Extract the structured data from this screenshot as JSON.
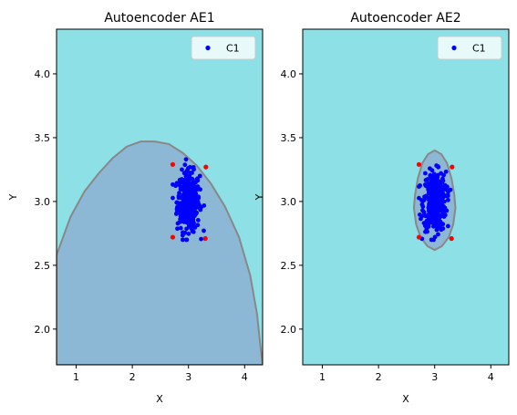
{
  "colors": {
    "background_region": "#8ce0e6",
    "boundary_region": "#8cb8d6",
    "boundary_line": "#888888",
    "inlier_points": "#0000ff",
    "outlier_points": "#ff0000"
  },
  "chart_data": [
    {
      "type": "scatter",
      "title": "Autoencoder AE1",
      "xlabel": "X",
      "ylabel": "Y",
      "xlim": [
        0.65,
        4.32
      ],
      "ylim": [
        1.72,
        4.35
      ],
      "xticks": [
        "1",
        "2",
        "3",
        "4"
      ],
      "yticks": [
        "2.0",
        "2.5",
        "3.0",
        "3.5",
        "4.0"
      ],
      "grid": false,
      "legend": {
        "position": "top-right",
        "entries": [
          {
            "label": "C1",
            "color": "#0000ff"
          }
        ]
      },
      "series": [
        {
          "name": "C1",
          "cluster_center": [
            3.0,
            3.0
          ],
          "cluster_std": [
            0.1,
            0.1
          ],
          "count": 400
        }
      ],
      "outliers": [
        [
          2.72,
          3.29
        ],
        [
          3.31,
          3.27
        ],
        [
          2.72,
          2.72
        ],
        [
          3.3,
          2.71
        ]
      ],
      "decision_boundary": [
        [
          0.65,
          2.58
        ],
        [
          0.9,
          2.88
        ],
        [
          1.15,
          3.08
        ],
        [
          1.4,
          3.22
        ],
        [
          1.65,
          3.34
        ],
        [
          1.9,
          3.43
        ],
        [
          2.15,
          3.47
        ],
        [
          2.4,
          3.47
        ],
        [
          2.65,
          3.45
        ],
        [
          2.9,
          3.38
        ],
        [
          3.15,
          3.28
        ],
        [
          3.4,
          3.14
        ],
        [
          3.65,
          2.96
        ],
        [
          3.9,
          2.72
        ],
        [
          4.1,
          2.42
        ],
        [
          4.22,
          2.12
        ],
        [
          4.28,
          1.87
        ],
        [
          4.32,
          1.72
        ]
      ]
    },
    {
      "type": "scatter",
      "title": "Autoencoder AE2",
      "xlabel": "X",
      "ylabel": "Y",
      "xlim": [
        0.65,
        4.32
      ],
      "ylim": [
        1.72,
        4.35
      ],
      "xticks": [
        "1",
        "2",
        "3",
        "4"
      ],
      "yticks": [
        "2.0",
        "2.5",
        "3.0",
        "3.5",
        "4.0"
      ],
      "grid": false,
      "legend": {
        "position": "top-right",
        "entries": [
          {
            "label": "C1",
            "color": "#0000ff"
          }
        ]
      },
      "series": [
        {
          "name": "C1",
          "cluster_center": [
            3.0,
            3.0
          ],
          "cluster_std": [
            0.1,
            0.1
          ],
          "count": 400
        }
      ],
      "outliers": [
        [
          2.72,
          3.29
        ],
        [
          3.31,
          3.27
        ],
        [
          2.72,
          2.72
        ],
        [
          3.3,
          2.71
        ]
      ],
      "decision_boundary": [
        [
          3.0,
          3.4
        ],
        [
          3.12,
          3.37
        ],
        [
          3.22,
          3.3
        ],
        [
          3.3,
          3.18
        ],
        [
          3.35,
          3.05
        ],
        [
          3.37,
          2.95
        ],
        [
          3.33,
          2.82
        ],
        [
          3.25,
          2.72
        ],
        [
          3.13,
          2.65
        ],
        [
          3.0,
          2.62
        ],
        [
          2.87,
          2.65
        ],
        [
          2.75,
          2.72
        ],
        [
          2.67,
          2.82
        ],
        [
          2.63,
          2.95
        ],
        [
          2.65,
          3.05
        ],
        [
          2.7,
          3.18
        ],
        [
          2.78,
          3.3
        ],
        [
          2.88,
          3.37
        ]
      ]
    }
  ]
}
